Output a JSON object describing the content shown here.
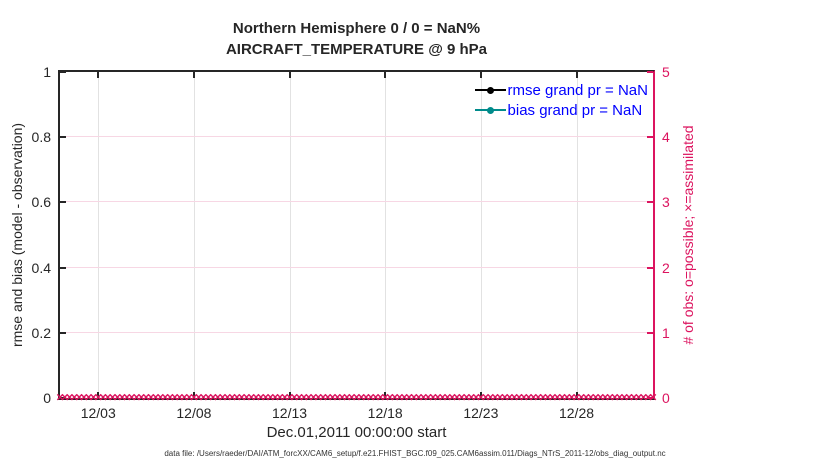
{
  "figure": {
    "title_line1": "Northern Hemisphere 0 / 0 = NaN%",
    "title_line2": "AIRCRAFT_TEMPERATURE @ 9 hPa",
    "xlabel": "Dec.01,2011 00:00:00 start",
    "ylabel_left": "rmse and bias (model - observation)",
    "ylabel_right": "# of obs: o=possible; ×=assimilated",
    "datafile_note": "data file: /Users/raeder/DAI/ATM_forcXX/CAM6_setup/f.e21.FHIST_BGC.f09_025.CAM6assim.011/Diags_NTrS_2011-12/obs_diag_output.nc"
  },
  "legend": {
    "entries": [
      {
        "label": "rmse grand pr = NaN",
        "color": "#000000"
      },
      {
        "label": "bias grand pr = NaN",
        "color": "#008B8B"
      }
    ],
    "text_color": "#0000FF"
  },
  "axes": {
    "x_ticks": [
      {
        "label": "12/03",
        "pct": 6.45
      },
      {
        "label": "12/08",
        "pct": 22.58
      },
      {
        "label": "12/13",
        "pct": 38.71
      },
      {
        "label": "12/18",
        "pct": 54.84
      },
      {
        "label": "12/23",
        "pct": 70.97
      },
      {
        "label": "12/28",
        "pct": 87.1
      }
    ],
    "y_left_ticks": [
      {
        "label": "0",
        "pct": 0
      },
      {
        "label": "0.2",
        "pct": 20
      },
      {
        "label": "0.4",
        "pct": 40
      },
      {
        "label": "0.6",
        "pct": 60
      },
      {
        "label": "0.8",
        "pct": 80
      },
      {
        "label": "1",
        "pct": 100
      }
    ],
    "y_right_ticks": [
      {
        "label": "0",
        "pct": 0
      },
      {
        "label": "1",
        "pct": 20
      },
      {
        "label": "2",
        "pct": 40
      },
      {
        "label": "3",
        "pct": 60
      },
      {
        "label": "4",
        "pct": 80
      },
      {
        "label": "5",
        "pct": 100
      }
    ]
  },
  "obs_markers": {
    "symbol": "×",
    "count": 125,
    "color": "#DC145F",
    "y_value": 0
  },
  "colors": {
    "pink": "#DC145F",
    "teal": "#008B8B",
    "legend_blue": "#0000FF",
    "spine": "#262626"
  },
  "chart_data": {
    "type": "line",
    "title": "Northern Hemisphere 0 / 0 = NaN%",
    "subtitle": "AIRCRAFT_TEMPERATURE @ 9 hPa",
    "xlabel": "Dec.01,2011 00:00:00 start",
    "ylabel_left": "rmse and bias (model - observation)",
    "ylabel_right": "# of obs: o=possible; ×=assimilated",
    "x_range_days": [
      "2011-12-01 00:00",
      "2012-01-01 00:00"
    ],
    "x_tick_labels": [
      "12/03",
      "12/08",
      "12/13",
      "12/18",
      "12/23",
      "12/28"
    ],
    "ylim_left": [
      0,
      1
    ],
    "ylim_right": [
      0,
      5
    ],
    "grid": true,
    "legend_position": "upper right inside, no box",
    "series": [
      {
        "name": "rmse grand pr = NaN",
        "axis": "left",
        "color": "#000000",
        "marker": "filled-circle",
        "values": "NaN — no curve plotted"
      },
      {
        "name": "bias grand pr = NaN",
        "axis": "left",
        "color": "#008B8B",
        "marker": "filled-circle",
        "values": "NaN — no curve plotted"
      },
      {
        "name": "# of obs (o=possible; ×=assimilated)",
        "axis": "right",
        "color": "#DC145F",
        "marker": "×",
        "points": 125,
        "value_at_every_point": 0,
        "note": "dense row of × markers along y=0 spanning full x-range"
      }
    ]
  }
}
